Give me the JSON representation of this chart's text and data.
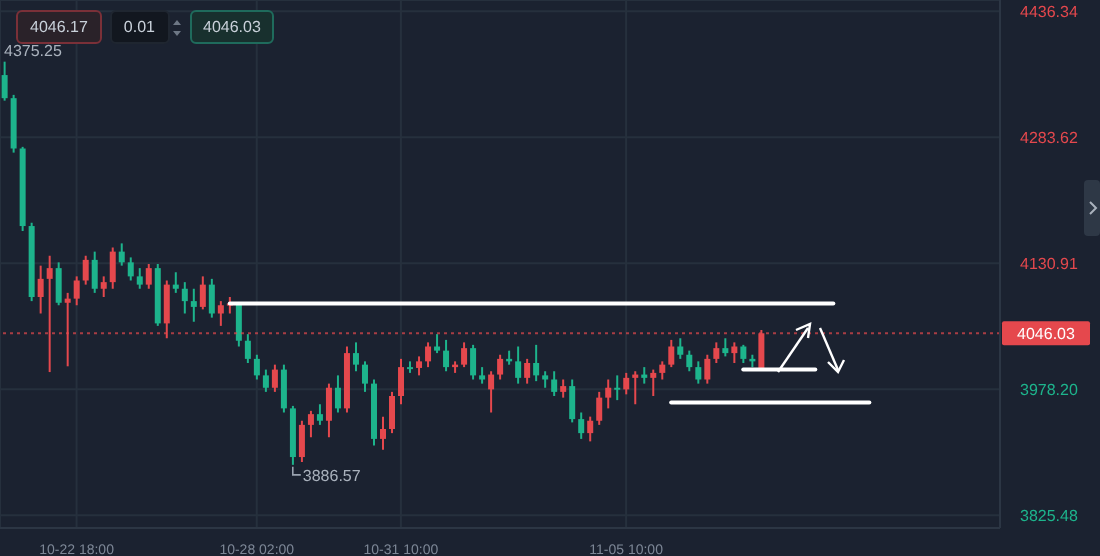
{
  "chart_data": {
    "type": "candlestick",
    "categories": [
      null,
      null,
      null,
      null,
      null,
      null,
      null,
      null,
      "10-22 18:00",
      null,
      null,
      null,
      null,
      null,
      null,
      null,
      null,
      null,
      null,
      null,
      null,
      null,
      null,
      null,
      null,
      null,
      null,
      null,
      "10-28 02:00",
      null,
      null,
      null,
      null,
      null,
      null,
      null,
      null,
      null,
      null,
      null,
      null,
      null,
      null,
      null,
      "10-31 10:00",
      null,
      null,
      null,
      null,
      null,
      null,
      null,
      null,
      null,
      null,
      null,
      null,
      null,
      null,
      null,
      null,
      null,
      null,
      null,
      null,
      null,
      null,
      null,
      null,
      "11-05 10:00",
      null,
      null,
      null,
      null,
      null,
      null,
      null,
      null,
      null,
      null,
      null,
      null,
      null,
      null,
      null,
      null,
      null,
      null,
      null,
      null,
      null,
      null,
      null,
      null,
      null,
      null,
      null,
      null,
      null,
      null,
      null,
      null,
      null,
      null,
      null,
      null,
      null,
      null,
      null,
      null,
      null
    ],
    "ohlc": [
      [
        4359,
        4375.25,
        4328,
        4331
      ],
      [
        4331,
        4335,
        4265,
        4270
      ],
      [
        4270,
        4272,
        4170,
        4176
      ],
      [
        4176,
        4180,
        4085,
        4090
      ],
      [
        4090,
        4128,
        4070,
        4112
      ],
      [
        4112,
        4140,
        3999,
        4125
      ],
      [
        4125,
        4132,
        4080,
        4083
      ],
      [
        4083,
        4095,
        4006,
        4088
      ],
      [
        4088,
        4115,
        4080,
        4110
      ],
      [
        4110,
        4140,
        4105,
        4135
      ],
      [
        4135,
        4145,
        4095,
        4100
      ],
      [
        4100,
        4115,
        4090,
        4108
      ],
      [
        4108,
        4150,
        4100,
        4145
      ],
      [
        4145,
        4155,
        4128,
        4132
      ],
      [
        4132,
        4138,
        4110,
        4115
      ],
      [
        4115,
        4125,
        4100,
        4105
      ],
      [
        4105,
        4130,
        4100,
        4125
      ],
      [
        4125,
        4130,
        4055,
        4058
      ],
      [
        4058,
        4110,
        4040,
        4105
      ],
      [
        4105,
        4120,
        4095,
        4100
      ],
      [
        4100,
        4108,
        4070,
        4085
      ],
      [
        4085,
        4100,
        4060,
        4078
      ],
      [
        4078,
        4115,
        4075,
        4105
      ],
      [
        4105,
        4112,
        4065,
        4070
      ],
      [
        4070,
        4085,
        4055,
        4080
      ],
      [
        4080,
        4090,
        4070,
        4082
      ],
      [
        4082,
        4084,
        4030,
        4037
      ],
      [
        4037,
        4045,
        4010,
        4015
      ],
      [
        4015,
        4020,
        3990,
        3995
      ],
      [
        3995,
        4002,
        3975,
        3980
      ],
      [
        3980,
        4008,
        3975,
        4002
      ],
      [
        4002,
        4008,
        3950,
        3955
      ],
      [
        3955,
        3958,
        3886.57,
        3896
      ],
      [
        3896,
        3940,
        3890,
        3935
      ],
      [
        3935,
        3952,
        3920,
        3948
      ],
      [
        3948,
        3960,
        3935,
        3940
      ],
      [
        3940,
        3985,
        3920,
        3980
      ],
      [
        3980,
        3995,
        3950,
        3955
      ],
      [
        3955,
        4030,
        3950,
        4022
      ],
      [
        4022,
        4035,
        4000,
        4008
      ],
      [
        4008,
        4012,
        3975,
        3985
      ],
      [
        3985,
        3990,
        3910,
        3918
      ],
      [
        3918,
        3945,
        3905,
        3930
      ],
      [
        3930,
        3975,
        3925,
        3970
      ],
      [
        3970,
        4015,
        3960,
        4005
      ],
      [
        4005,
        4012,
        3998,
        4004
      ],
      [
        4004,
        4018,
        3995,
        4012
      ],
      [
        4012,
        4035,
        4005,
        4030
      ],
      [
        4030,
        4045,
        4022,
        4025
      ],
      [
        4025,
        4038,
        4000,
        4005
      ],
      [
        4005,
        4012,
        3998,
        4008
      ],
      [
        4008,
        4035,
        4005,
        4028
      ],
      [
        4028,
        4032,
        3990,
        3995
      ],
      [
        3995,
        4005,
        3985,
        3990
      ],
      [
        3978,
        4000,
        3950,
        3996
      ],
      [
        3996,
        4020,
        3990,
        4015
      ],
      [
        4015,
        4025,
        4008,
        4012
      ],
      [
        4012,
        4030,
        3985,
        3992
      ],
      [
        3992,
        4015,
        3985,
        4010
      ],
      [
        4010,
        4032,
        3988,
        3995
      ],
      [
        3995,
        4000,
        3980,
        3990
      ],
      [
        3990,
        4000,
        3970,
        3975
      ],
      [
        3975,
        3990,
        3968,
        3982
      ],
      [
        3982,
        3990,
        3938,
        3942
      ],
      [
        3942,
        3950,
        3918,
        3925
      ],
      [
        3925,
        3945,
        3915,
        3940
      ],
      [
        3940,
        3975,
        3935,
        3968
      ],
      [
        3968,
        3990,
        3955,
        3980
      ],
      [
        3980,
        3995,
        3965,
        3978
      ],
      [
        3978,
        3998,
        3972,
        3992
      ],
      [
        3992,
        4000,
        3960,
        3996
      ],
      [
        3996,
        4005,
        3985,
        3992
      ],
      [
        3992,
        4002,
        3970,
        3998
      ],
      [
        3998,
        4012,
        3990,
        4008
      ],
      [
        4008,
        4038,
        4005,
        4030
      ],
      [
        4030,
        4040,
        4015,
        4020
      ],
      [
        4020,
        4025,
        4000,
        4005
      ],
      [
        4005,
        4012,
        3985,
        3990
      ],
      [
        3990,
        4020,
        3985,
        4015
      ],
      [
        4015,
        4035,
        4010,
        4028
      ],
      [
        4028,
        4040,
        4018,
        4022
      ],
      [
        4022,
        4035,
        4010,
        4030
      ],
      [
        4030,
        4032,
        4010,
        4015
      ],
      [
        4015,
        4020,
        4005,
        4012
      ],
      [
        4004,
        4050,
        4002,
        4046.03
      ],
      null,
      null,
      null,
      null,
      null,
      null,
      null,
      null,
      null,
      null,
      null,
      null,
      null,
      null,
      null,
      null,
      null,
      null,
      null,
      null,
      null,
      null,
      null,
      null,
      null,
      null
    ],
    "colors": [
      "#1db48c",
      "#1db48c",
      "#1db48c",
      "#1db48c",
      "#e5484d",
      "#e5484d",
      "#1db48c",
      "#e5484d",
      "#e5484d",
      "#e5484d",
      "#1db48c",
      "#e5484d",
      "#e5484d",
      "#1db48c",
      "#1db48c",
      "#1db48c",
      "#e5484d",
      "#1db48c",
      "#e5484d",
      "#1db48c",
      "#1db48c",
      "#1db48c",
      "#e5484d",
      "#1db48c",
      "#e5484d",
      "#e5484d",
      "#1db48c",
      "#1db48c",
      "#1db48c",
      "#1db48c",
      "#e5484d",
      "#1db48c",
      "#1db48c",
      "#e5484d",
      "#e5484d",
      "#1db48c",
      "#e5484d",
      "#1db48c",
      "#e5484d",
      "#1db48c",
      "#1db48c",
      "#1db48c",
      "#e5484d",
      "#e5484d",
      "#e5484d",
      "#1db48c",
      "#e5484d",
      "#e5484d",
      "#1db48c",
      "#1db48c",
      "#e5484d",
      "#e5484d",
      "#1db48c",
      "#1db48c",
      "#e5484d",
      "#e5484d",
      "#1db48c",
      "#1db48c",
      "#e5484d",
      "#1db48c",
      "#1db48c",
      "#1db48c",
      "#e5484d",
      "#1db48c",
      "#1db48c",
      "#e5484d",
      "#e5484d",
      "#e5484d",
      "#1db48c",
      "#e5484d",
      "#e5484d",
      "#1db48c",
      "#e5484d",
      "#e5484d",
      "#e5484d",
      "#1db48c",
      "#1db48c",
      "#1db48c",
      "#e5484d",
      "#e5484d",
      "#1db48c",
      "#e5484d",
      "#1db48c",
      "#1db48c",
      "#e5484d",
      null,
      null,
      null,
      null,
      null,
      null,
      null,
      null,
      null,
      null,
      null,
      null,
      null,
      null,
      null,
      null,
      null,
      null,
      null,
      null,
      null,
      null,
      null,
      null,
      null,
      null
    ],
    "series": [
      {
        "type": "line",
        "color": "#ffffff",
        "values": [
          null,
          null,
          null,
          null,
          null,
          null,
          null,
          null,
          null,
          null,
          null,
          null,
          null,
          null,
          null,
          null,
          null,
          null,
          null,
          null,
          null,
          null,
          null,
          null,
          null,
          4082,
          4082,
          4082,
          4082,
          4082,
          4082,
          4082,
          4082,
          4082,
          4082,
          4082,
          4082,
          4082,
          4082,
          4082,
          4082,
          4082,
          4082,
          4082,
          4082,
          4082,
          4082,
          4082,
          4082,
          4082,
          4082,
          4082,
          4082,
          4082,
          4082,
          4082,
          4082,
          4082,
          4082,
          4082,
          4082,
          4082,
          4082,
          4082,
          4082,
          4082,
          4082,
          4082,
          4082,
          4082,
          4082,
          4082,
          4082,
          4082,
          4082,
          4082,
          4082,
          4082,
          4082,
          4082,
          4082,
          4082,
          4082,
          4082,
          4082,
          4082,
          4082,
          4082,
          4082,
          4082,
          4082,
          4082,
          4082,
          null,
          null,
          null,
          null,
          null,
          null,
          null,
          null,
          null,
          null,
          null,
          null,
          null,
          null,
          null,
          null,
          null,
          null
        ]
      },
      {
        "type": "line",
        "color": "#ffffff",
        "values": [
          null,
          null,
          null,
          null,
          null,
          null,
          null,
          null,
          null,
          null,
          null,
          null,
          null,
          null,
          null,
          null,
          null,
          null,
          null,
          null,
          null,
          null,
          null,
          null,
          null,
          null,
          null,
          null,
          null,
          null,
          null,
          null,
          null,
          null,
          null,
          null,
          null,
          null,
          null,
          null,
          null,
          null,
          null,
          null,
          null,
          null,
          null,
          null,
          null,
          null,
          null,
          null,
          null,
          null,
          null,
          null,
          null,
          null,
          null,
          null,
          null,
          null,
          null,
          null,
          null,
          null,
          null,
          null,
          null,
          null,
          null,
          null,
          null,
          null,
          null,
          null,
          null,
          null,
          null,
          null,
          null,
          null,
          4002,
          4002,
          4002,
          4002,
          4002,
          4002,
          4002,
          4002,
          4002,
          null,
          null,
          null,
          null,
          null,
          null,
          null,
          null,
          null,
          null,
          null,
          null,
          null,
          null,
          null,
          null,
          null,
          null,
          null,
          null
        ]
      },
      {
        "type": "line",
        "color": "#ffffff",
        "values": [
          null,
          null,
          null,
          null,
          null,
          null,
          null,
          null,
          null,
          null,
          null,
          null,
          null,
          null,
          null,
          null,
          null,
          null,
          null,
          null,
          null,
          null,
          null,
          null,
          null,
          null,
          null,
          null,
          null,
          null,
          null,
          null,
          null,
          null,
          null,
          null,
          null,
          null,
          null,
          null,
          null,
          null,
          null,
          null,
          null,
          null,
          null,
          null,
          null,
          null,
          null,
          null,
          null,
          null,
          null,
          null,
          null,
          null,
          null,
          null,
          null,
          null,
          null,
          null,
          null,
          null,
          null,
          null,
          null,
          null,
          null,
          null,
          null,
          null,
          3962,
          3962,
          3962,
          3962,
          3962,
          3962,
          3962,
          3962,
          3962,
          3962,
          3962,
          3962,
          3962,
          3962,
          3962,
          3962,
          3962,
          3962,
          3962,
          3962,
          3962,
          3962,
          3962,
          null,
          null,
          null,
          null,
          null,
          null,
          null,
          null,
          null,
          null,
          null,
          null,
          null,
          null
        ]
      }
    ],
    "ylim": [
      3810,
      4450
    ],
    "yticks": [
      4436.34,
      4283.62,
      4130.91,
      {
        "value": 3978.2,
        "label": "3978.20"
      },
      3825.48
    ],
    "grid": true,
    "ref_lines": [
      {
        "axis": "y",
        "value": 4046.03,
        "label": "4046.03",
        "color": "#e5484d",
        "line_style": "dotted"
      }
    ],
    "annotations": [
      "4046.17",
      "0.01",
      "4046.03",
      "4375.25",
      "3886.57"
    ]
  }
}
